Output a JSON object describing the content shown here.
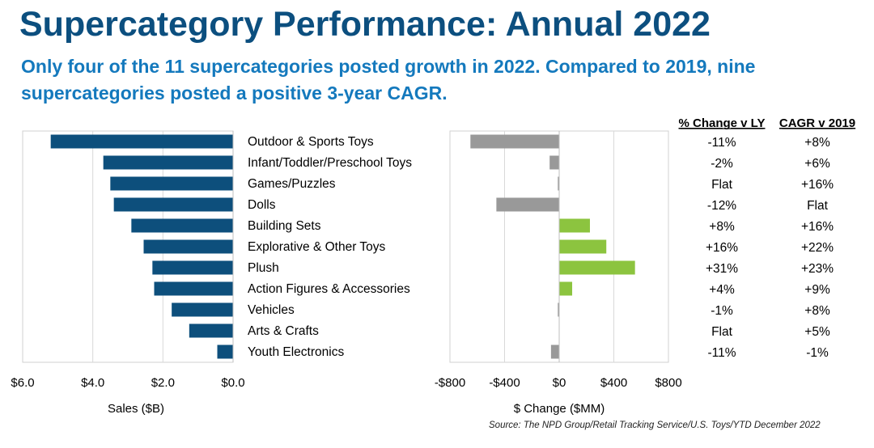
{
  "title": "Supercategory Performance: Annual 2022",
  "subtitle": "Only four of the 11 supercategories posted growth in 2022. Compared to 2019, nine supercategories posted a positive 3-year CAGR.",
  "source": "Source: The NPD Group/Retail Tracking Service/U.S. Toys/YTD December 2022",
  "colors": {
    "title": "#0c4f7f",
    "subtitle": "#1479bd",
    "sales_bar": "#0d4f7c",
    "decline_bar": "#999999",
    "growth_bar": "#8cc43f"
  },
  "chart_data": [
    {
      "type": "bar",
      "orientation": "horizontal",
      "categories": [
        "Outdoor & Sports Toys",
        "Infant/Toddler/Preschool Toys",
        "Games/Puzzles",
        "Dolls",
        "Building Sets",
        "Explorative & Other Toys",
        "Plush",
        "Action Figures & Accessories",
        "Vehicles",
        "Arts & Crafts",
        "Youth Electronics"
      ],
      "values": [
        5.2,
        3.7,
        3.5,
        3.4,
        2.9,
        2.55,
        2.3,
        2.25,
        1.75,
        1.25,
        0.45
      ],
      "xlabel": "Sales ($B)",
      "xlim": [
        0,
        6
      ],
      "reversed_axis": true,
      "ticks": [
        "$6.0",
        "$4.0",
        "$2.0",
        "$0.0"
      ],
      "grid": true
    },
    {
      "type": "bar",
      "orientation": "horizontal",
      "categories": [
        "Outdoor & Sports Toys",
        "Infant/Toddler/Preschool Toys",
        "Games/Puzzles",
        "Dolls",
        "Building Sets",
        "Explorative & Other Toys",
        "Plush",
        "Action Figures & Accessories",
        "Vehicles",
        "Arts & Crafts",
        "Youth Electronics"
      ],
      "values": [
        -650,
        -70,
        -10,
        -460,
        225,
        345,
        555,
        95,
        -10,
        0,
        -60
      ],
      "xlabel": "$ Change ($MM)",
      "xlim": [
        -800,
        800
      ],
      "ticks": [
        "-$800",
        "-$400",
        "$0",
        "$400",
        "$800"
      ],
      "grid": true
    },
    {
      "type": "table",
      "columns": [
        "% Change v LY",
        "CAGR v 2019"
      ],
      "rows": [
        [
          "-11%",
          "+8%"
        ],
        [
          "-2%",
          "+6%"
        ],
        [
          "Flat",
          "+16%"
        ],
        [
          "-12%",
          "Flat"
        ],
        [
          "+8%",
          "+16%"
        ],
        [
          "+16%",
          "+22%"
        ],
        [
          "+31%",
          "+23%"
        ],
        [
          "+4%",
          "+9%"
        ],
        [
          "-1%",
          "+8%"
        ],
        [
          "Flat",
          "+5%"
        ],
        [
          "-11%",
          "-1%"
        ]
      ]
    }
  ]
}
